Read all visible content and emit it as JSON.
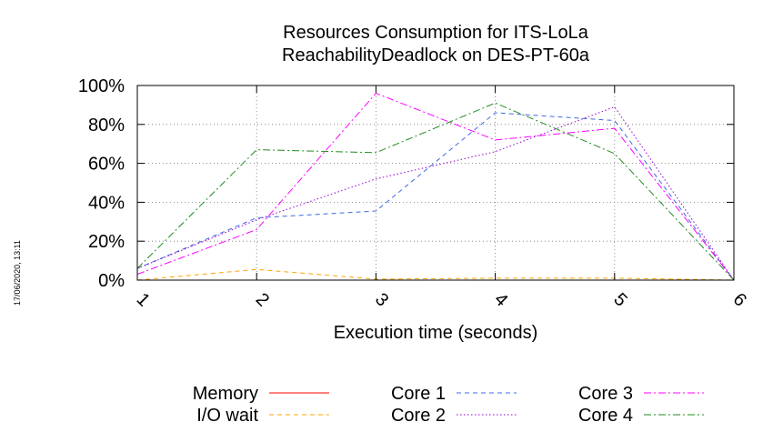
{
  "side_note": "17/06/2020, 13:11",
  "chart_data": {
    "type": "line",
    "title": [
      "Resources Consumption for ITS-LoLa",
      "ReachabilityDeadlock on DES-PT-60a"
    ],
    "xlabel": "Execution time (seconds)",
    "ylabel": "",
    "x": [
      1,
      2,
      3,
      4,
      5,
      6
    ],
    "xlim": [
      1,
      6
    ],
    "ylim": [
      0,
      100
    ],
    "yticks": [
      "0%",
      "20%",
      "40%",
      "60%",
      "80%",
      "100%"
    ],
    "xticks": [
      "1",
      "2",
      "3",
      "4",
      "5",
      "6"
    ],
    "grid": true,
    "legend": "bottom",
    "series": [
      {
        "name": "Memory",
        "color": "#ff0000",
        "dash": "solid",
        "values": [
          0,
          0,
          0,
          0,
          0,
          0
        ]
      },
      {
        "name": "I/O wait",
        "color": "#ffa500",
        "dash": "dashed",
        "values": [
          0,
          5.5,
          0.5,
          1,
          1,
          0
        ]
      },
      {
        "name": "Core 1",
        "color": "#4169e1",
        "dash": "dashed",
        "values": [
          6,
          32,
          35.5,
          86,
          82,
          0
        ]
      },
      {
        "name": "Core 2",
        "color": "#9400d3",
        "dash": "dotted",
        "values": [
          6,
          31,
          52,
          66,
          89,
          0
        ]
      },
      {
        "name": "Core 3",
        "color": "#ff00ff",
        "dash": "dashdot",
        "values": [
          3,
          26,
          96,
          72,
          78,
          0
        ]
      },
      {
        "name": "Core 4",
        "color": "#228b22",
        "dash": "dashdot",
        "values": [
          6,
          67,
          65.5,
          91,
          65,
          0
        ]
      }
    ]
  }
}
